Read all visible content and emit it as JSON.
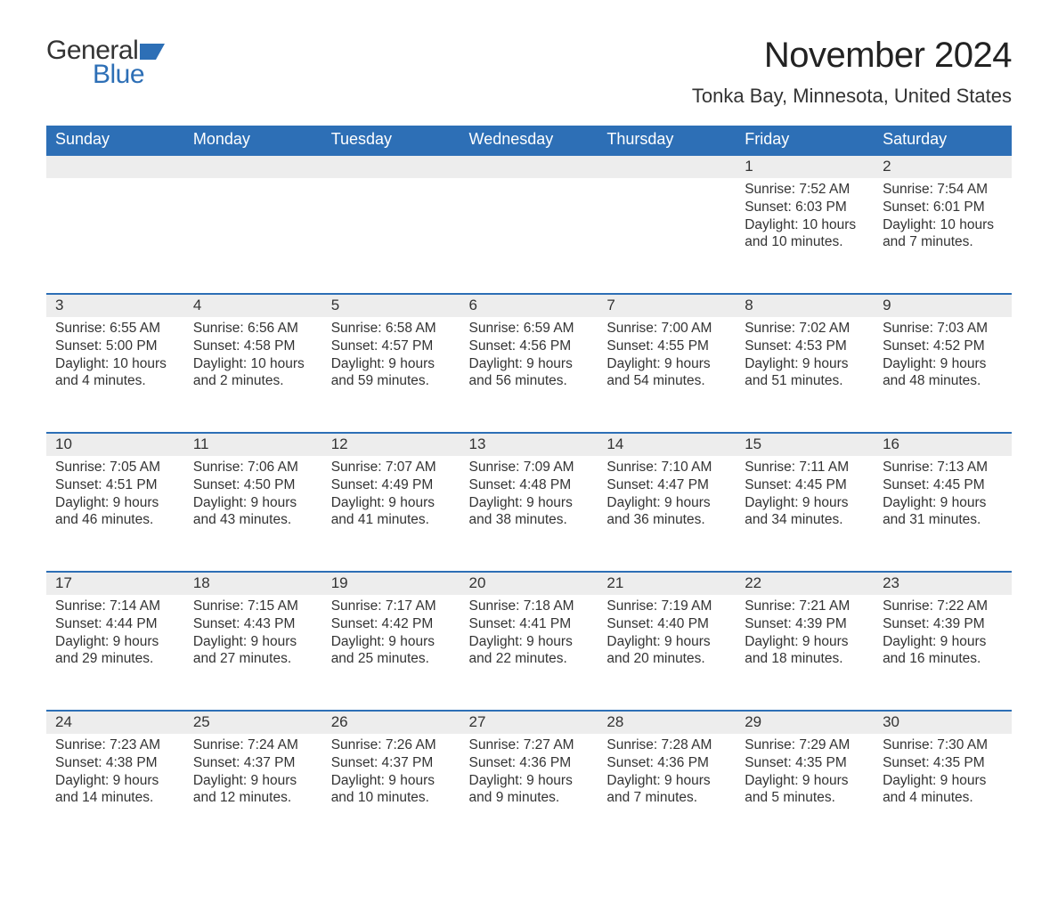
{
  "brand": {
    "word1": "General",
    "word2": "Blue",
    "flag_color": "#2d6fb6"
  },
  "title": "November 2024",
  "location": "Tonka Bay, Minnesota, United States",
  "colors": {
    "header_bg": "#2d6fb6",
    "header_text": "#ffffff",
    "daynum_bg": "#ededed",
    "row_border": "#2d6fb6",
    "body_text": "#333333",
    "background": "#ffffff"
  },
  "day_headers": [
    "Sunday",
    "Monday",
    "Tuesday",
    "Wednesday",
    "Thursday",
    "Friday",
    "Saturday"
  ],
  "weeks": [
    [
      {
        "n": "",
        "sunrise": "",
        "sunset": "",
        "daylight": ""
      },
      {
        "n": "",
        "sunrise": "",
        "sunset": "",
        "daylight": ""
      },
      {
        "n": "",
        "sunrise": "",
        "sunset": "",
        "daylight": ""
      },
      {
        "n": "",
        "sunrise": "",
        "sunset": "",
        "daylight": ""
      },
      {
        "n": "",
        "sunrise": "",
        "sunset": "",
        "daylight": ""
      },
      {
        "n": "1",
        "sunrise": "Sunrise: 7:52 AM",
        "sunset": "Sunset: 6:03 PM",
        "daylight": "Daylight: 10 hours and 10 minutes."
      },
      {
        "n": "2",
        "sunrise": "Sunrise: 7:54 AM",
        "sunset": "Sunset: 6:01 PM",
        "daylight": "Daylight: 10 hours and 7 minutes."
      }
    ],
    [
      {
        "n": "3",
        "sunrise": "Sunrise: 6:55 AM",
        "sunset": "Sunset: 5:00 PM",
        "daylight": "Daylight: 10 hours and 4 minutes."
      },
      {
        "n": "4",
        "sunrise": "Sunrise: 6:56 AM",
        "sunset": "Sunset: 4:58 PM",
        "daylight": "Daylight: 10 hours and 2 minutes."
      },
      {
        "n": "5",
        "sunrise": "Sunrise: 6:58 AM",
        "sunset": "Sunset: 4:57 PM",
        "daylight": "Daylight: 9 hours and 59 minutes."
      },
      {
        "n": "6",
        "sunrise": "Sunrise: 6:59 AM",
        "sunset": "Sunset: 4:56 PM",
        "daylight": "Daylight: 9 hours and 56 minutes."
      },
      {
        "n": "7",
        "sunrise": "Sunrise: 7:00 AM",
        "sunset": "Sunset: 4:55 PM",
        "daylight": "Daylight: 9 hours and 54 minutes."
      },
      {
        "n": "8",
        "sunrise": "Sunrise: 7:02 AM",
        "sunset": "Sunset: 4:53 PM",
        "daylight": "Daylight: 9 hours and 51 minutes."
      },
      {
        "n": "9",
        "sunrise": "Sunrise: 7:03 AM",
        "sunset": "Sunset: 4:52 PM",
        "daylight": "Daylight: 9 hours and 48 minutes."
      }
    ],
    [
      {
        "n": "10",
        "sunrise": "Sunrise: 7:05 AM",
        "sunset": "Sunset: 4:51 PM",
        "daylight": "Daylight: 9 hours and 46 minutes."
      },
      {
        "n": "11",
        "sunrise": "Sunrise: 7:06 AM",
        "sunset": "Sunset: 4:50 PM",
        "daylight": "Daylight: 9 hours and 43 minutes."
      },
      {
        "n": "12",
        "sunrise": "Sunrise: 7:07 AM",
        "sunset": "Sunset: 4:49 PM",
        "daylight": "Daylight: 9 hours and 41 minutes."
      },
      {
        "n": "13",
        "sunrise": "Sunrise: 7:09 AM",
        "sunset": "Sunset: 4:48 PM",
        "daylight": "Daylight: 9 hours and 38 minutes."
      },
      {
        "n": "14",
        "sunrise": "Sunrise: 7:10 AM",
        "sunset": "Sunset: 4:47 PM",
        "daylight": "Daylight: 9 hours and 36 minutes."
      },
      {
        "n": "15",
        "sunrise": "Sunrise: 7:11 AM",
        "sunset": "Sunset: 4:45 PM",
        "daylight": "Daylight: 9 hours and 34 minutes."
      },
      {
        "n": "16",
        "sunrise": "Sunrise: 7:13 AM",
        "sunset": "Sunset: 4:45 PM",
        "daylight": "Daylight: 9 hours and 31 minutes."
      }
    ],
    [
      {
        "n": "17",
        "sunrise": "Sunrise: 7:14 AM",
        "sunset": "Sunset: 4:44 PM",
        "daylight": "Daylight: 9 hours and 29 minutes."
      },
      {
        "n": "18",
        "sunrise": "Sunrise: 7:15 AM",
        "sunset": "Sunset: 4:43 PM",
        "daylight": "Daylight: 9 hours and 27 minutes."
      },
      {
        "n": "19",
        "sunrise": "Sunrise: 7:17 AM",
        "sunset": "Sunset: 4:42 PM",
        "daylight": "Daylight: 9 hours and 25 minutes."
      },
      {
        "n": "20",
        "sunrise": "Sunrise: 7:18 AM",
        "sunset": "Sunset: 4:41 PM",
        "daylight": "Daylight: 9 hours and 22 minutes."
      },
      {
        "n": "21",
        "sunrise": "Sunrise: 7:19 AM",
        "sunset": "Sunset: 4:40 PM",
        "daylight": "Daylight: 9 hours and 20 minutes."
      },
      {
        "n": "22",
        "sunrise": "Sunrise: 7:21 AM",
        "sunset": "Sunset: 4:39 PM",
        "daylight": "Daylight: 9 hours and 18 minutes."
      },
      {
        "n": "23",
        "sunrise": "Sunrise: 7:22 AM",
        "sunset": "Sunset: 4:39 PM",
        "daylight": "Daylight: 9 hours and 16 minutes."
      }
    ],
    [
      {
        "n": "24",
        "sunrise": "Sunrise: 7:23 AM",
        "sunset": "Sunset: 4:38 PM",
        "daylight": "Daylight: 9 hours and 14 minutes."
      },
      {
        "n": "25",
        "sunrise": "Sunrise: 7:24 AM",
        "sunset": "Sunset: 4:37 PM",
        "daylight": "Daylight: 9 hours and 12 minutes."
      },
      {
        "n": "26",
        "sunrise": "Sunrise: 7:26 AM",
        "sunset": "Sunset: 4:37 PM",
        "daylight": "Daylight: 9 hours and 10 minutes."
      },
      {
        "n": "27",
        "sunrise": "Sunrise: 7:27 AM",
        "sunset": "Sunset: 4:36 PM",
        "daylight": "Daylight: 9 hours and 9 minutes."
      },
      {
        "n": "28",
        "sunrise": "Sunrise: 7:28 AM",
        "sunset": "Sunset: 4:36 PM",
        "daylight": "Daylight: 9 hours and 7 minutes."
      },
      {
        "n": "29",
        "sunrise": "Sunrise: 7:29 AM",
        "sunset": "Sunset: 4:35 PM",
        "daylight": "Daylight: 9 hours and 5 minutes."
      },
      {
        "n": "30",
        "sunrise": "Sunrise: 7:30 AM",
        "sunset": "Sunset: 4:35 PM",
        "daylight": "Daylight: 9 hours and 4 minutes."
      }
    ]
  ]
}
